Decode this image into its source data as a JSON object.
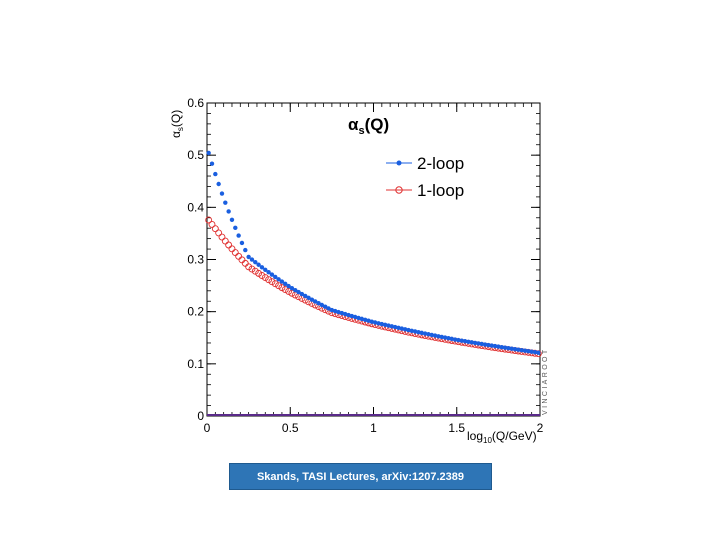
{
  "caption": "Skands, TASI Lectures, arXiv:1207.2389",
  "watermark": "VINCIAROOT",
  "colors": {
    "two_loop": "#1a5fe0",
    "one_loop": "#e03030",
    "overlap": "#5a2a8a"
  },
  "chart_data": {
    "type": "scatter",
    "title": "α",
    "title_sub": "s",
    "title_suffix": "(Q)",
    "xlabel": "log",
    "xlabel_sub": "10",
    "xlabel_suffix": "(Q/GeV)",
    "ylabel": "α",
    "ylabel_sub": "s",
    "ylabel_suffix": "(Q)",
    "xlim": [
      0,
      2
    ],
    "ylim": [
      0,
      0.6
    ],
    "x_ticks": [
      "0",
      "0.5",
      "1",
      "1.5",
      "2"
    ],
    "y_ticks": [
      "0",
      "0.1",
      "0.2",
      "0.3",
      "0.4",
      "0.5",
      "0.6"
    ],
    "grid": false,
    "legend_position": "top-right",
    "series": [
      {
        "name": "2-loop",
        "marker": "filled-circle",
        "x": [
          0,
          0.25,
          0.5,
          0.75,
          1.0,
          1.25,
          1.5,
          1.75,
          2.0
        ],
        "y": [
          0.515,
          0.305,
          0.247,
          0.203,
          0.18,
          0.162,
          0.146,
          0.133,
          0.121
        ]
      },
      {
        "name": "1-loop",
        "marker": "open-circle",
        "x": [
          0,
          0.25,
          0.5,
          0.75,
          1.0,
          1.25,
          1.5,
          1.75,
          2.0
        ],
        "y": [
          0.38,
          0.286,
          0.237,
          0.198,
          0.176,
          0.158,
          0.143,
          0.13,
          0.119
        ]
      }
    ]
  }
}
